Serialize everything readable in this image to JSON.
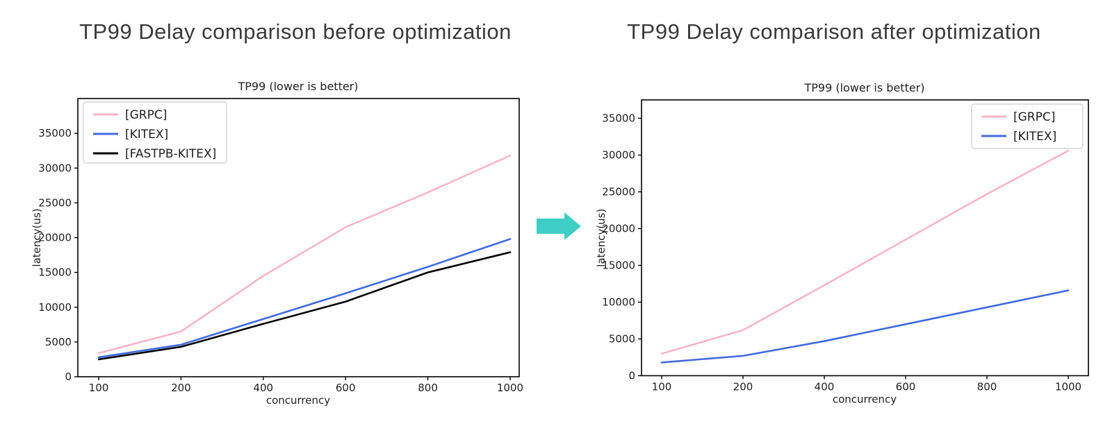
{
  "headings": {
    "left": "TP99 Delay comparison before optimization",
    "right": "TP99 Delay comparison after optimization"
  },
  "arrow": {
    "icon": "right-arrow-icon",
    "color": "#3fcec5"
  },
  "colors": {
    "grpc_pink": "#f8b6c4",
    "kitex_blue": "#4169e1",
    "fastpb_black": "#000000",
    "legend_border": "#cccccc",
    "axis": "#000000",
    "chart_text": "#1f1f1f"
  },
  "chart_data": [
    {
      "type": "line",
      "title": "TP99 (lower is better)",
      "xlabel": "concurrency",
      "ylabel": "latency(us)",
      "categories": [
        100,
        200,
        400,
        600,
        800,
        1000
      ],
      "series": [
        {
          "name": "[GRPC]",
          "color": "#f8b6c4",
          "values": [
            3400,
            6500,
            14500,
            21500,
            26500,
            31800
          ]
        },
        {
          "name": "[KITEX]",
          "color": "#4169e1",
          "values": [
            2800,
            4600,
            8300,
            12000,
            15800,
            19800
          ]
        },
        {
          "name": "[FASTPB-KITEX]",
          "color": "#000000",
          "values": [
            2500,
            4300,
            7600,
            10800,
            15000,
            17900
          ]
        }
      ],
      "yticks": [
        0,
        5000,
        10000,
        15000,
        20000,
        25000,
        30000,
        35000
      ],
      "ylim": [
        0,
        40000
      ],
      "grid": false,
      "legend_position": "top-left"
    },
    {
      "type": "line",
      "title": "TP99 (lower is better)",
      "xlabel": "concurrency",
      "ylabel": "latency(us)",
      "categories": [
        100,
        200,
        400,
        600,
        800,
        1000
      ],
      "series": [
        {
          "name": "[GRPC]",
          "color": "#f8b6c4",
          "values": [
            3000,
            6200,
            12300,
            18500,
            24700,
            30600
          ]
        },
        {
          "name": "[KITEX]",
          "color": "#4169e1",
          "values": [
            1800,
            2700,
            4700,
            7000,
            9300,
            11600
          ]
        }
      ],
      "yticks": [
        0,
        5000,
        10000,
        15000,
        20000,
        25000,
        30000,
        35000
      ],
      "ylim": [
        0,
        37500
      ],
      "grid": false,
      "legend_position": "top-right"
    }
  ]
}
